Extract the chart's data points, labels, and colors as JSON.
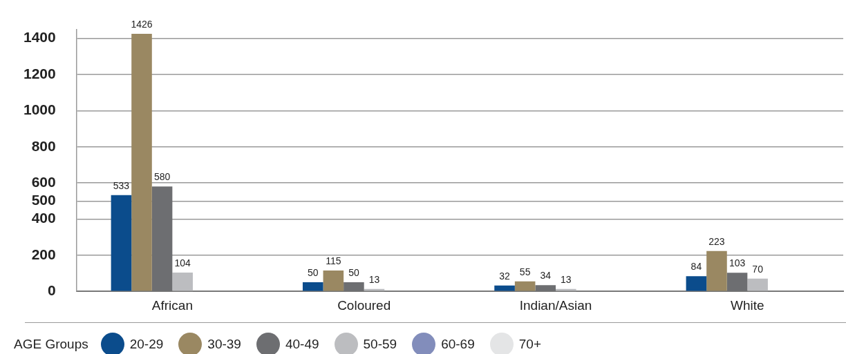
{
  "chart_data": {
    "type": "bar",
    "legend_title": "AGE Groups",
    "categories": [
      "African",
      "Coloured",
      "Indian/Asian",
      "White"
    ],
    "series": [
      {
        "name": "20-29",
        "color": "#0b4c8c",
        "values": [
          533,
          50,
          32,
          84
        ]
      },
      {
        "name": "30-39",
        "color": "#9a8862",
        "values": [
          1426,
          115,
          55,
          223
        ]
      },
      {
        "name": "40-49",
        "color": "#6d6e71",
        "values": [
          580,
          50,
          34,
          103
        ]
      },
      {
        "name": "50-59",
        "color": "#bcbdc0",
        "values": [
          104,
          13,
          13,
          70
        ]
      },
      {
        "name": "60-69",
        "color": "#828dbb",
        "values": [
          null,
          null,
          null,
          null
        ]
      },
      {
        "name": "70+",
        "color": "#e4e5e6",
        "values": [
          null,
          null,
          null,
          null
        ]
      }
    ],
    "ylim": [
      0,
      1450
    ],
    "yticks": [
      0,
      200,
      400,
      500,
      600,
      800,
      1000,
      1200,
      1400
    ],
    "grid": "y",
    "legend": "bottom",
    "data_labels": true
  }
}
